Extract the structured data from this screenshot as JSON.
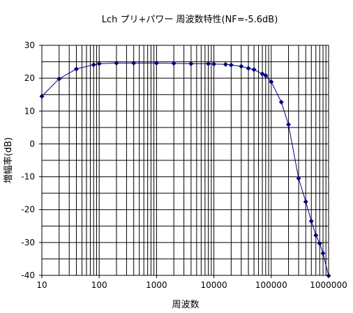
{
  "chart_data": {
    "type": "line",
    "title": "Lch プリ+パワー 周波数特性(NF=-5.6dB)",
    "xlabel": "周波数",
    "ylabel": "増幅率(dB)",
    "x_scale": "log",
    "xlim": [
      10,
      1000000
    ],
    "ylim": [
      -40,
      30
    ],
    "x_ticks": [
      10,
      100,
      1000,
      10000,
      100000,
      1000000
    ],
    "x_tick_labels": [
      "10",
      "100",
      "1000",
      "10000",
      "100000",
      "1000000"
    ],
    "y_ticks": [
      30,
      20,
      10,
      0,
      -10,
      -20,
      -30,
      -40
    ],
    "y_tick_labels": [
      "30",
      "20",
      "10",
      "0",
      "-10",
      "-20",
      "-30",
      "-40"
    ],
    "grid": true,
    "legend": "none",
    "line_color": "#000080",
    "series": [
      {
        "x": [
          10,
          20,
          40,
          80,
          100,
          200,
          400,
          1000,
          2000,
          4000,
          8000,
          10000,
          16000,
          20000,
          30000,
          40000,
          50000,
          70000,
          80000,
          100000,
          150000,
          200000,
          300000,
          400000,
          500000,
          600000,
          700000,
          800000,
          1000000
        ],
        "y": [
          14.5,
          19.8,
          22.8,
          24.1,
          24.4,
          24.6,
          24.6,
          24.6,
          24.5,
          24.4,
          24.4,
          24.3,
          24.2,
          24.0,
          23.6,
          23.0,
          22.6,
          21.3,
          20.8,
          18.9,
          12.7,
          5.9,
          -10.5,
          -17.6,
          -23.5,
          -27.8,
          -30.3,
          -33.3,
          -40.1
        ]
      }
    ]
  }
}
